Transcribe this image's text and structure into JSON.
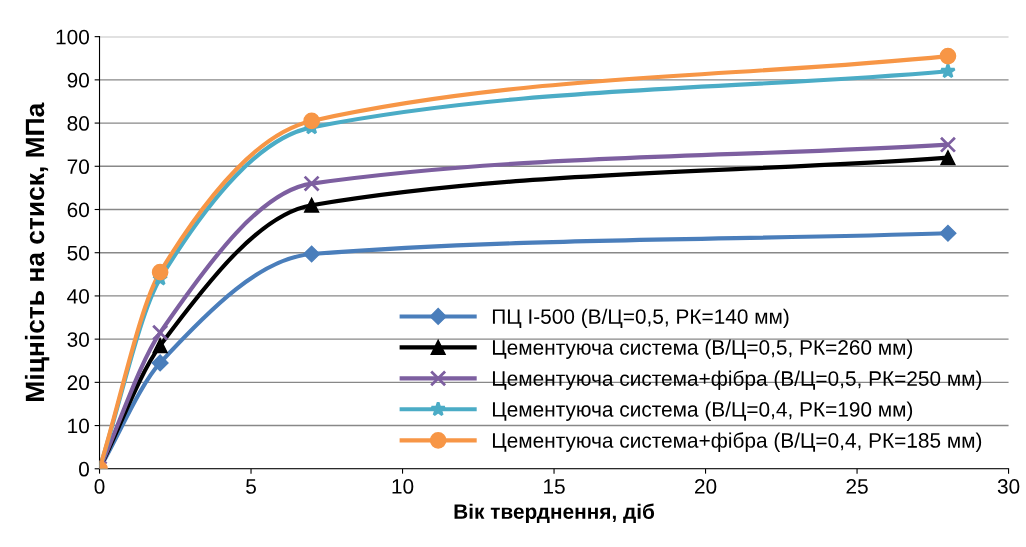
{
  "chart_data": {
    "type": "line",
    "xlabel": "Вік тверднення, діб",
    "ylabel": "Міцність на стиск, МПа",
    "x": [
      0,
      2,
      7,
      28
    ],
    "xlim": [
      0,
      30
    ],
    "xticks": [
      0,
      5,
      10,
      15,
      20,
      25,
      30
    ],
    "ylim": [
      0,
      100
    ],
    "yticks": [
      0,
      10,
      20,
      30,
      40,
      50,
      60,
      70,
      80,
      90,
      100
    ],
    "grid": "y",
    "legend": "bottom right",
    "line_style": "solid",
    "series": [
      {
        "name": "ПЦ І-500 (В/Ц=0,5, РК=140 мм)",
        "color": "#4a7ebb",
        "marker": "diamond",
        "values": [
          0,
          24.5,
          49.7,
          54.5
        ]
      },
      {
        "name": "Цементуюча система (В/Ц=0,5, РК=260 мм)",
        "color": "#000000",
        "marker": "triangle",
        "values": [
          0,
          28.5,
          61,
          72
        ]
      },
      {
        "name": "Цементуюча система+фібра (В/Ц=0,5, РК=250 мм)",
        "color": "#7d5fa0",
        "marker": "cross",
        "values": [
          0,
          31.5,
          66,
          75
        ]
      },
      {
        "name": "Цементуюча система (В/Ц=0,4, РК=190 мм)",
        "color": "#4bacc6",
        "marker": "star",
        "values": [
          0,
          44,
          79,
          92
        ]
      },
      {
        "name": "Цементуюча система+фібра (В/Ц=0,4, РК=185 мм)",
        "color": "#f79646",
        "marker": "circle",
        "values": [
          0,
          45.5,
          80.5,
          95.5
        ]
      }
    ]
  }
}
